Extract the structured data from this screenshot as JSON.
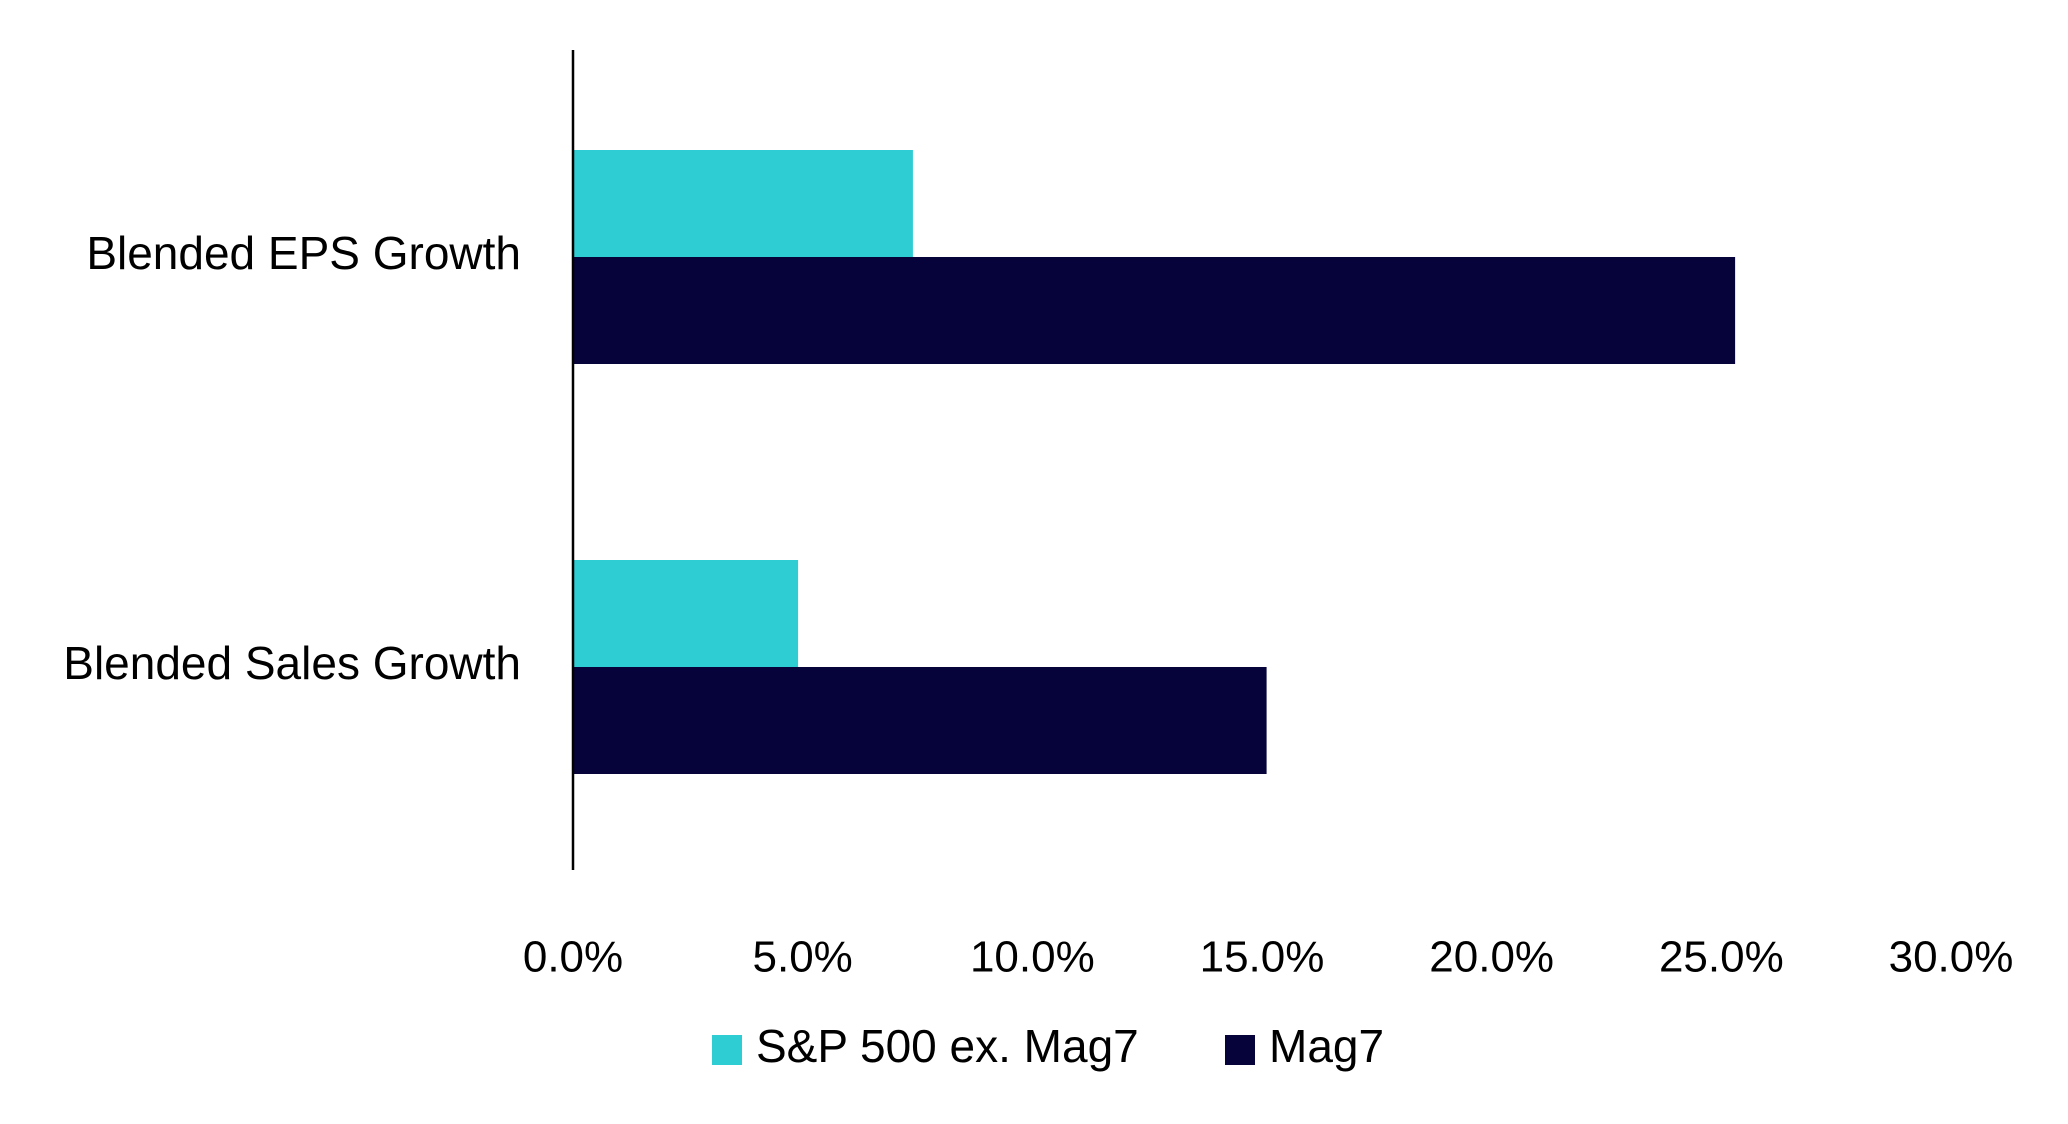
{
  "chart_data": {
    "type": "bar",
    "orientation": "horizontal",
    "categories": [
      "Blended EPS Growth",
      "Blended Sales Growth"
    ],
    "series": [
      {
        "name": "S&P 500 ex. Mag7",
        "color": "#2ECCD3",
        "values": [
          7.4,
          4.9
        ]
      },
      {
        "name": "Mag7",
        "color": "#06033A",
        "values": [
          25.3,
          15.1
        ]
      }
    ],
    "xlim": [
      0,
      30
    ],
    "x_ticks": [
      0,
      5,
      10,
      15,
      20,
      25,
      30
    ],
    "x_tick_labels": [
      "0.0%",
      "5.0%",
      "10.0%",
      "15.0%",
      "20.0%",
      "25.0%",
      "30.0%"
    ],
    "title": "",
    "xlabel": "",
    "ylabel": "",
    "grid": false,
    "legend_position": "bottom"
  }
}
